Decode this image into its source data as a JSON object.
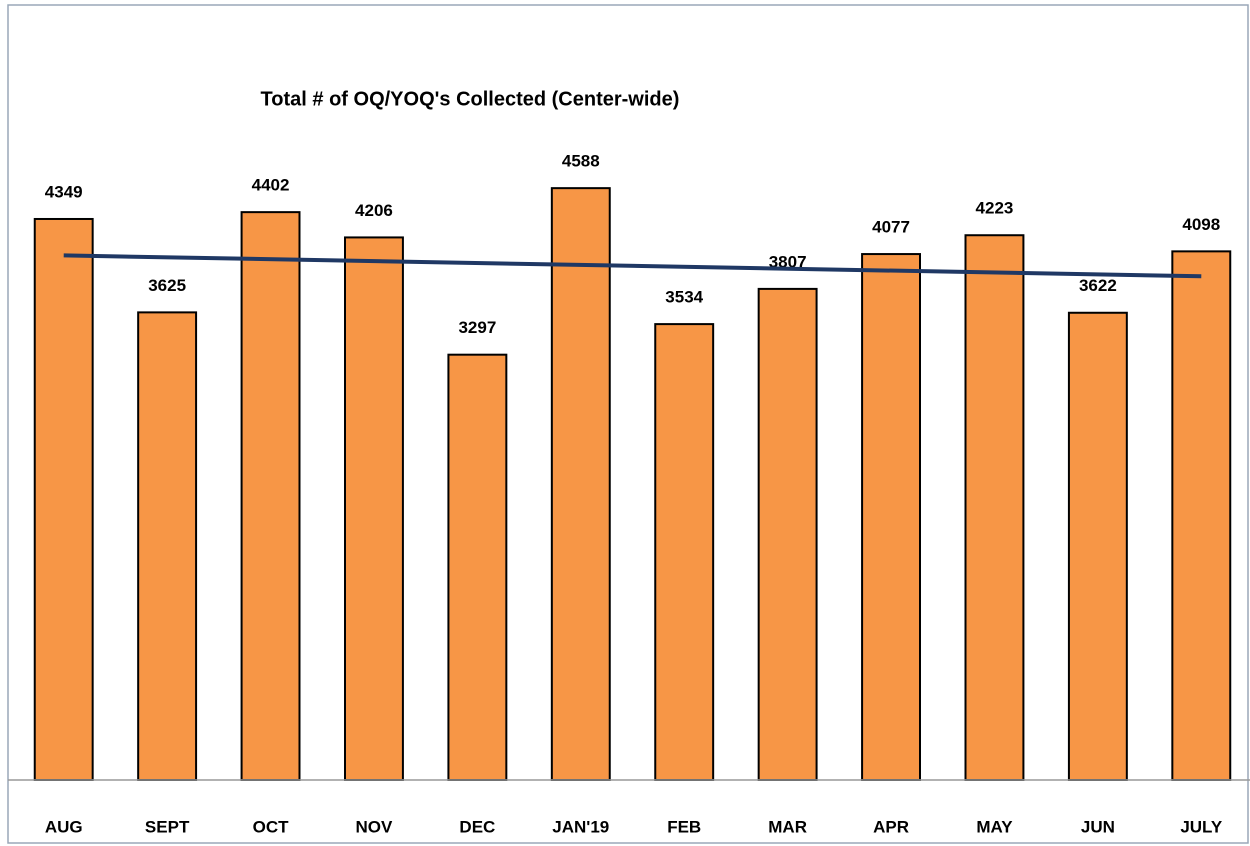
{
  "chart_data": {
    "type": "bar",
    "title": "Total # of OQ/YOQ's Collected (Center-wide)",
    "categories": [
      "AUG",
      "SEPT",
      "OCT",
      "NOV",
      "DEC",
      "JAN'19",
      "FEB",
      "MAR",
      "APR",
      "MAY",
      "JUN",
      "JULY"
    ],
    "values": [
      4349,
      3625,
      4402,
      4206,
      3297,
      4588,
      3534,
      3807,
      4077,
      4223,
      3622,
      4098
    ],
    "color": "#f79646",
    "ylim": [
      0,
      5000
    ],
    "trendline": true,
    "trendline_color": "#1f3864"
  }
}
